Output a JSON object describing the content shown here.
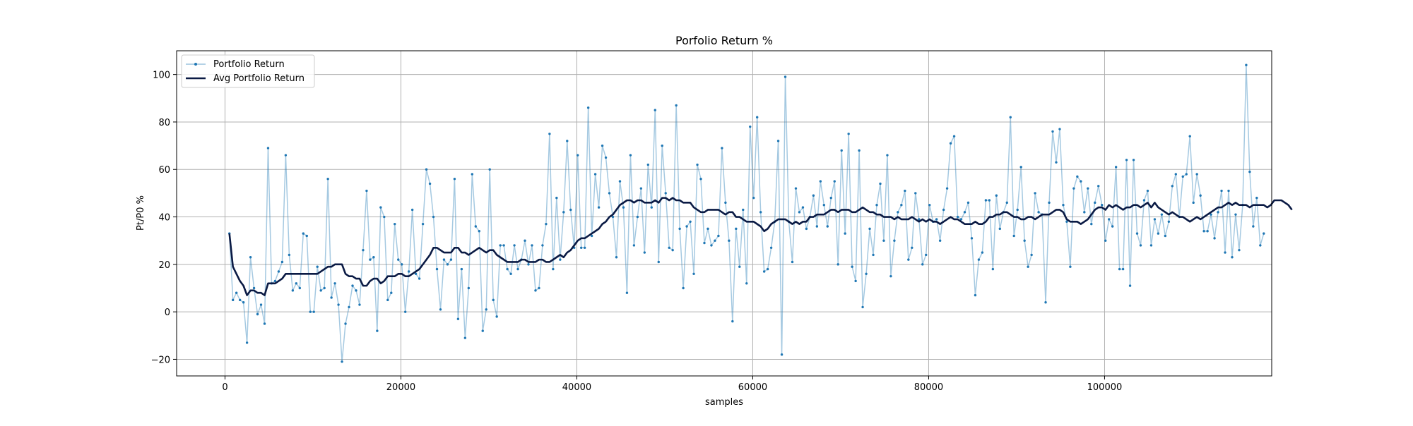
{
  "chart_data": {
    "type": "line",
    "title": "Porfolio Return %",
    "xlabel": "samples",
    "ylabel": "Pt/P0 %",
    "xlim": [
      -5500,
      119000
    ],
    "ylim": [
      -27,
      110
    ],
    "xticks": [
      0,
      20000,
      40000,
      60000,
      80000,
      100000
    ],
    "xtick_labels": [
      "0",
      "20000",
      "40000",
      "60000",
      "80000",
      "100000"
    ],
    "yticks": [
      -20,
      0,
      20,
      40,
      60,
      80,
      100
    ],
    "ytick_labels": [
      "−20",
      "0",
      "20",
      "40",
      "60",
      "80",
      "100"
    ],
    "grid": true,
    "legend_position": "top-left",
    "series": [
      {
        "name": "Portfolio Return",
        "color": "#1f77b4",
        "marker": "dot",
        "x_start": 500,
        "x_step": 400,
        "values": [
          33,
          5,
          8,
          5,
          4,
          -13,
          23,
          10,
          -1,
          3,
          -5,
          69,
          12,
          13,
          17,
          21,
          66,
          24,
          9,
          12,
          10,
          33,
          32,
          0,
          0,
          19,
          9,
          10,
          56,
          6,
          12,
          3,
          -21,
          -5,
          2,
          11,
          9,
          3,
          26,
          51,
          22,
          23,
          -8,
          44,
          40,
          5,
          8,
          37,
          22,
          20,
          0,
          17,
          43,
          16,
          14,
          37,
          60,
          54,
          40,
          18,
          1,
          22,
          20,
          22,
          56,
          -3,
          18,
          -11,
          10,
          58,
          36,
          34,
          -8,
          1,
          60,
          5,
          -2,
          28,
          28,
          18,
          16,
          28,
          18,
          22,
          30,
          20,
          28,
          9,
          10,
          28,
          37,
          75,
          18,
          48,
          22,
          42,
          72,
          43,
          27,
          66,
          27,
          27,
          86,
          32,
          58,
          44,
          70,
          65,
          50,
          40,
          23,
          55,
          44,
          8,
          66,
          28,
          40,
          52,
          25,
          62,
          44,
          85,
          21,
          70,
          50,
          27,
          26,
          87,
          35,
          10,
          36,
          38,
          16,
          62,
          56,
          29,
          35,
          28,
          30,
          32,
          69,
          46,
          30,
          -4,
          35,
          19,
          43,
          12,
          78,
          48,
          82,
          42,
          17,
          18,
          27,
          38,
          72,
          -18,
          99,
          38,
          21,
          52,
          42,
          44,
          35,
          40,
          49,
          36,
          55,
          45,
          36,
          48,
          55,
          20,
          68,
          33,
          75,
          19,
          13,
          68,
          2,
          16,
          35,
          24,
          45,
          54,
          30,
          66,
          15,
          30,
          42,
          45,
          51,
          22,
          27,
          50,
          39,
          20,
          24,
          45,
          38,
          39,
          30,
          43,
          52,
          71,
          74,
          40,
          39,
          42,
          46,
          31,
          7,
          22,
          25,
          47,
          47,
          18,
          49,
          35,
          42,
          46,
          82,
          32,
          43,
          61,
          30,
          19,
          24,
          50,
          42,
          41,
          4,
          46,
          76,
          63,
          77,
          45,
          38,
          19,
          52,
          57,
          55,
          42,
          52,
          37,
          46,
          53,
          45,
          30,
          39,
          36,
          61,
          18,
          18,
          64,
          11,
          64,
          33,
          28,
          47,
          51,
          28,
          39,
          33,
          41,
          32,
          38,
          53,
          58,
          40,
          57,
          58,
          74,
          46,
          58,
          49,
          34,
          34,
          41,
          31,
          42,
          51,
          25,
          51,
          23,
          41,
          26,
          45,
          104,
          59,
          36,
          48,
          28,
          33
        ]
      },
      {
        "name": "Avg Portfolio Return",
        "color": "#0a1a44",
        "marker": "none",
        "x_start": 500,
        "x_step": 400,
        "values": [
          33,
          19,
          16,
          13,
          11,
          7,
          9,
          9,
          8,
          8,
          7,
          12,
          12,
          12,
          13,
          14,
          16,
          16,
          16,
          16,
          16,
          16,
          16,
          16,
          16,
          16,
          17,
          18,
          19,
          19,
          20,
          20,
          20,
          16,
          15,
          15,
          14,
          14,
          11,
          11,
          13,
          14,
          14,
          12,
          13,
          15,
          15,
          15,
          16,
          16,
          15,
          15,
          16,
          17,
          18,
          20,
          22,
          24,
          27,
          27,
          26,
          25,
          25,
          25,
          27,
          27,
          25,
          25,
          24,
          25,
          26,
          27,
          26,
          25,
          26,
          26,
          24,
          23,
          22,
          21,
          21,
          21,
          21,
          22,
          22,
          21,
          21,
          21,
          22,
          22,
          21,
          21,
          22,
          23,
          24,
          23,
          25,
          26,
          28,
          30,
          31,
          31,
          32,
          33,
          34,
          35,
          37,
          38,
          40,
          41,
          43,
          45,
          46,
          47,
          47,
          46,
          47,
          47,
          46,
          46,
          46,
          47,
          46,
          48,
          48,
          47,
          48,
          47,
          47,
          46,
          46,
          46,
          44,
          43,
          42,
          42,
          43,
          43,
          43,
          43,
          42,
          41,
          42,
          42,
          40,
          40,
          39,
          38,
          38,
          38,
          37,
          36,
          34,
          35,
          37,
          38,
          39,
          39,
          39,
          38,
          37,
          38,
          37,
          38,
          38,
          40,
          40,
          41,
          41,
          41,
          42,
          43,
          43,
          42,
          43,
          43,
          43,
          42,
          42,
          43,
          44,
          43,
          42,
          42,
          41,
          41,
          40,
          40,
          40,
          39,
          40,
          39,
          39,
          39,
          40,
          39,
          38,
          39,
          38,
          39,
          38,
          38,
          37,
          38,
          39,
          40,
          39,
          39,
          38,
          37,
          37,
          37,
          38,
          37,
          37,
          38,
          40,
          40,
          41,
          41,
          42,
          42,
          41,
          40,
          40,
          39,
          39,
          40,
          40,
          39,
          40,
          41,
          41,
          41,
          42,
          43,
          43,
          42,
          39,
          38,
          38,
          38,
          37,
          38,
          39,
          41,
          43,
          44,
          44,
          43,
          45,
          44,
          45,
          44,
          43,
          44,
          44,
          45,
          45,
          44,
          45,
          46,
          44,
          46,
          44,
          43,
          42,
          41,
          42,
          41,
          40,
          40,
          39,
          38,
          39,
          40,
          39,
          40,
          41,
          42,
          43,
          44,
          44,
          45,
          46,
          45,
          46,
          45,
          45,
          45,
          44,
          45,
          45,
          45,
          45,
          44,
          45,
          47,
          47,
          47,
          46,
          45,
          43
        ]
      }
    ]
  }
}
